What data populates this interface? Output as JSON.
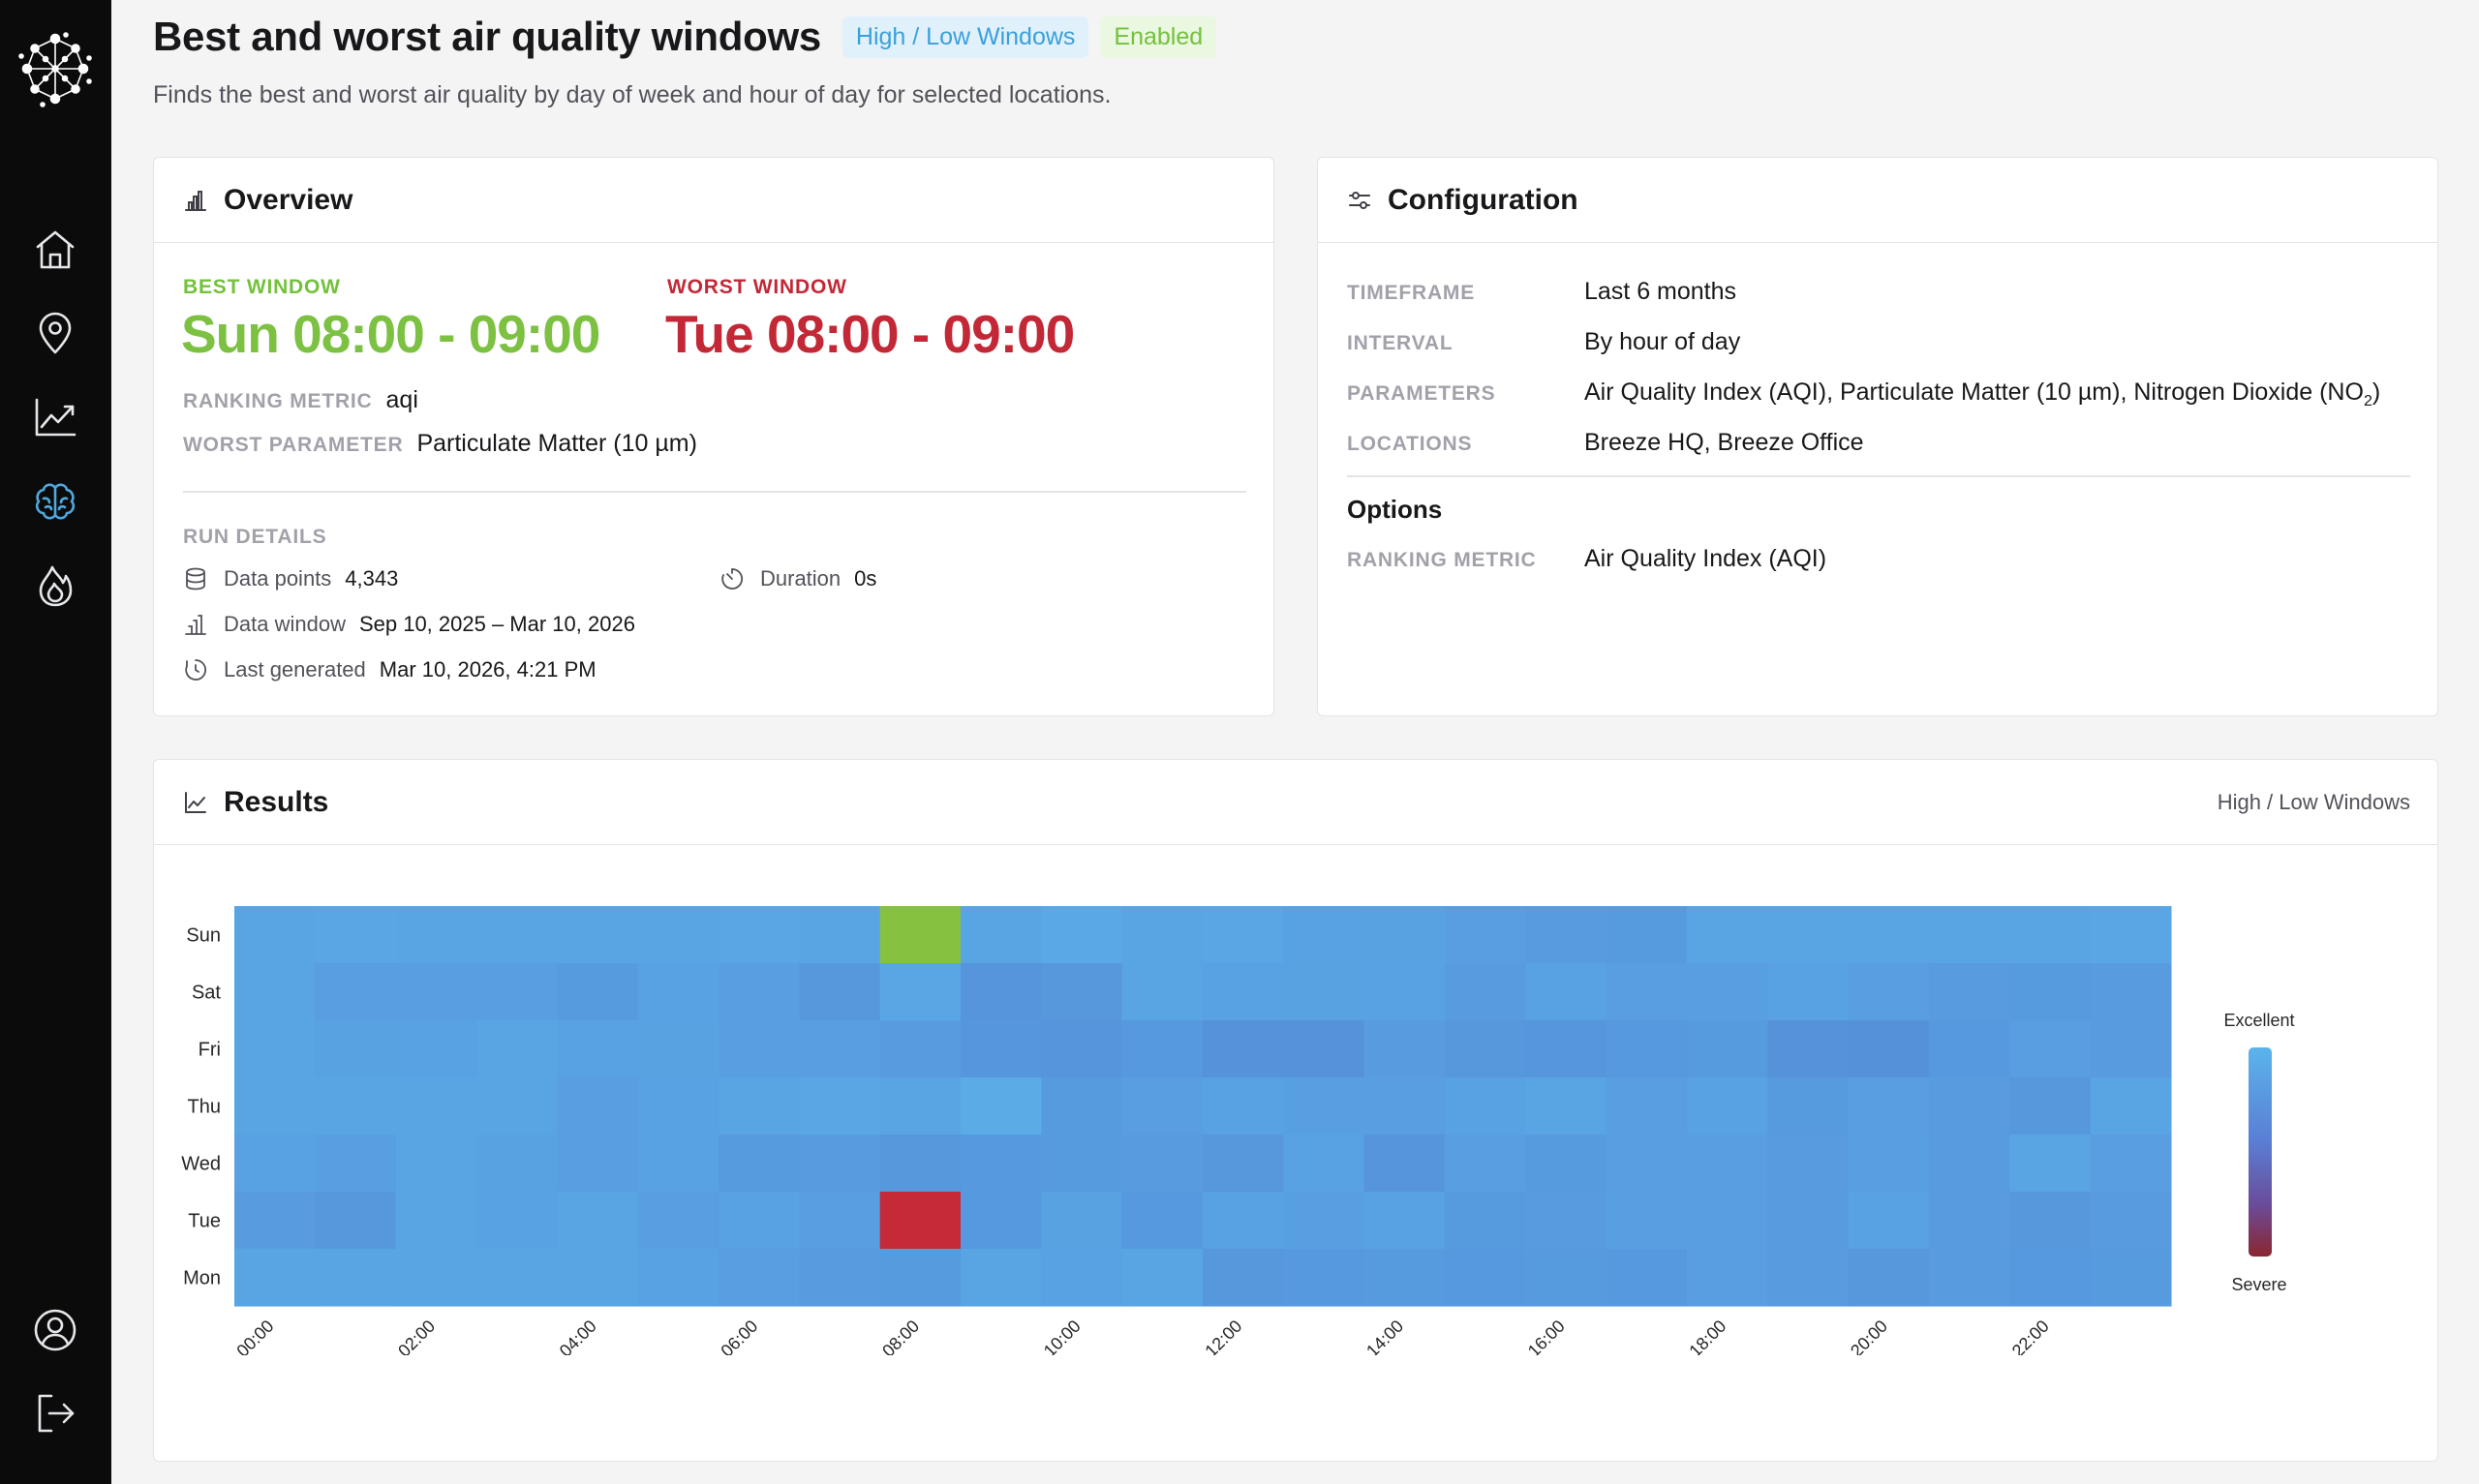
{
  "page": {
    "title": "Best and worst air quality windows",
    "type_badge": "High / Low Windows",
    "status_badge": "Enabled",
    "subtitle": "Finds the best and worst air quality by day of week and hour of day for selected locations."
  },
  "sidebar": {
    "items": [
      {
        "name": "home",
        "icon": "home-icon"
      },
      {
        "name": "locations",
        "icon": "map-pin-icon"
      },
      {
        "name": "trends",
        "icon": "trend-chart-icon"
      },
      {
        "name": "insights",
        "icon": "brain-icon",
        "active": true
      },
      {
        "name": "hotspots",
        "icon": "flame-icon"
      },
      {
        "name": "account",
        "icon": "user-circle-icon"
      },
      {
        "name": "logout",
        "icon": "logout-icon"
      }
    ]
  },
  "overview": {
    "title": "Overview",
    "best_label": "BEST WINDOW",
    "best_value": "Sun 08:00 - 09:00",
    "worst_label": "WORST WINDOW",
    "worst_value": "Tue 08:00 - 09:00",
    "ranking_metric_label": "RANKING METRIC",
    "ranking_metric_value": "aqi",
    "worst_parameter_label": "WORST PARAMETER",
    "worst_parameter_value": "Particulate Matter (10 µm)",
    "run_details": {
      "label": "RUN DETAILS",
      "data_points_label": "Data points",
      "data_points_value": "4,343",
      "duration_label": "Duration",
      "duration_value": "0s",
      "data_window_label": "Data window",
      "data_window_value": "Sep 10, 2025 – Mar 10, 2026",
      "last_generated_label": "Last generated",
      "last_generated_value": "Mar 10, 2026, 4:21 PM"
    }
  },
  "configuration": {
    "title": "Configuration",
    "timeframe_label": "TIMEFRAME",
    "timeframe_value": "Last 6 months",
    "interval_label": "INTERVAL",
    "interval_value": "By hour of day",
    "parameters_label": "PARAMETERS",
    "parameters_value": "Air Quality Index (AQI), Particulate Matter (10 µm), Nitrogen Dioxide (NO",
    "parameters_sub": "2",
    "parameters_close": ")",
    "locations_label": "LOCATIONS",
    "locations_value": "Breeze HQ, Breeze Office",
    "options_title": "Options",
    "ranking_metric_label": "RANKING METRIC",
    "ranking_metric_value": "Air Quality Index (AQI)"
  },
  "results": {
    "title": "Results",
    "right_label": "High / Low Windows"
  },
  "colors": {
    "best": "#86c140",
    "worst": "#c42a38",
    "scale_excellent": "#5ab2ea",
    "scale_severe": "#8a2630"
  },
  "chart_data": {
    "type": "heatmap",
    "rows": [
      "Sun",
      "Sat",
      "Fri",
      "Thu",
      "Wed",
      "Tue",
      "Mon"
    ],
    "columns": [
      "00:00",
      "01:00",
      "02:00",
      "03:00",
      "04:00",
      "05:00",
      "06:00",
      "07:00",
      "08:00",
      "09:00",
      "10:00",
      "11:00",
      "12:00",
      "13:00",
      "14:00",
      "15:00",
      "16:00",
      "17:00",
      "18:00",
      "19:00",
      "20:00",
      "21:00",
      "22:00",
      "23:00"
    ],
    "x_tick_labels": [
      "00:00",
      "02:00",
      "04:00",
      "06:00",
      "08:00",
      "10:00",
      "12:00",
      "14:00",
      "16:00",
      "18:00",
      "20:00",
      "22:00"
    ],
    "values": [
      [
        0.1,
        0.08,
        0.1,
        0.09,
        0.1,
        0.09,
        0.08,
        0.1,
        0.0,
        0.09,
        0.07,
        0.1,
        0.08,
        0.12,
        0.11,
        0.14,
        0.15,
        0.16,
        0.09,
        0.09,
        0.1,
        0.1,
        0.09,
        0.08
      ],
      [
        0.1,
        0.14,
        0.14,
        0.13,
        0.16,
        0.12,
        0.13,
        0.18,
        0.08,
        0.2,
        0.18,
        0.1,
        0.12,
        0.11,
        0.12,
        0.15,
        0.12,
        0.14,
        0.13,
        0.12,
        0.14,
        0.15,
        0.16,
        0.15
      ],
      [
        0.1,
        0.11,
        0.12,
        0.1,
        0.12,
        0.11,
        0.13,
        0.14,
        0.15,
        0.19,
        0.2,
        0.17,
        0.22,
        0.22,
        0.15,
        0.18,
        0.19,
        0.17,
        0.16,
        0.22,
        0.23,
        0.17,
        0.14,
        0.15
      ],
      [
        0.1,
        0.09,
        0.1,
        0.1,
        0.14,
        0.12,
        0.1,
        0.08,
        0.1,
        0.05,
        0.16,
        0.14,
        0.12,
        0.13,
        0.14,
        0.12,
        0.1,
        0.14,
        0.12,
        0.16,
        0.14,
        0.15,
        0.18,
        0.1
      ],
      [
        0.12,
        0.13,
        0.1,
        0.11,
        0.14,
        0.12,
        0.16,
        0.15,
        0.18,
        0.17,
        0.16,
        0.15,
        0.18,
        0.12,
        0.2,
        0.14,
        0.16,
        0.13,
        0.14,
        0.15,
        0.13,
        0.15,
        0.1,
        0.14
      ],
      [
        0.15,
        0.18,
        0.1,
        0.12,
        0.1,
        0.14,
        0.12,
        0.14,
        1.0,
        0.17,
        0.11,
        0.17,
        0.12,
        0.13,
        0.12,
        0.16,
        0.15,
        0.13,
        0.14,
        0.15,
        0.12,
        0.15,
        0.18,
        0.15
      ],
      [
        0.1,
        0.09,
        0.1,
        0.1,
        0.1,
        0.12,
        0.14,
        0.15,
        0.16,
        0.1,
        0.12,
        0.1,
        0.18,
        0.17,
        0.16,
        0.17,
        0.16,
        0.17,
        0.14,
        0.15,
        0.18,
        0.15,
        0.17,
        0.16
      ]
    ],
    "highlight_best": {
      "row": "Sun",
      "column": "08:00"
    },
    "highlight_worst": {
      "row": "Tue",
      "column": "08:00"
    },
    "legend": {
      "top_label": "Excellent",
      "bottom_label": "Severe",
      "placement": "right"
    }
  }
}
